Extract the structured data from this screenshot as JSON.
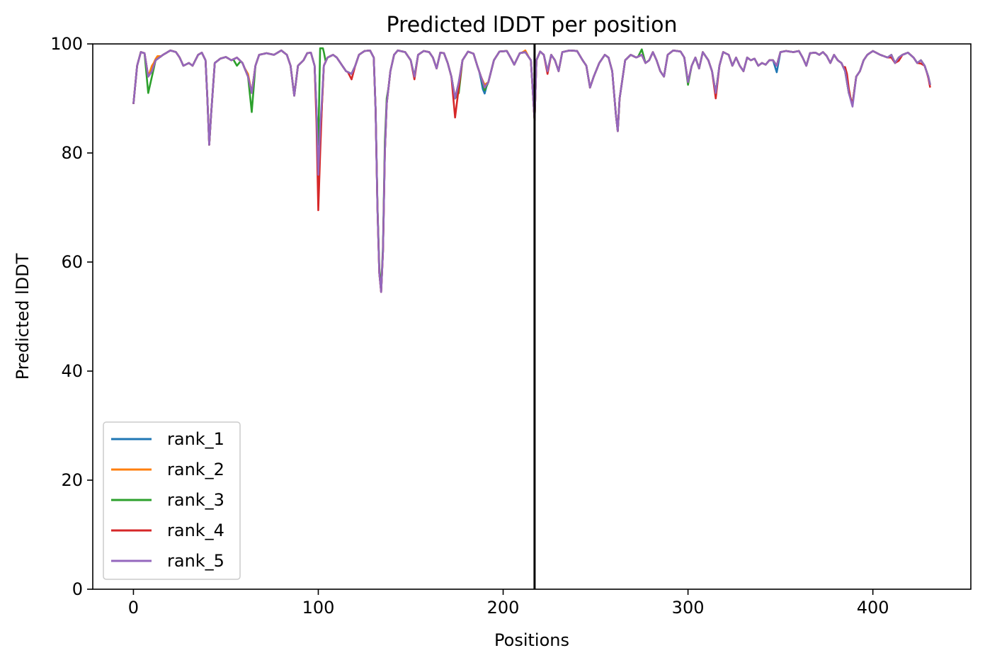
{
  "chart_data": {
    "type": "line",
    "title": "Predicted lDDT per position",
    "xlabel": "Positions",
    "ylabel": "Predicted lDDT",
    "xlim": [
      -22,
      453
    ],
    "ylim": [
      0,
      100
    ],
    "xticks": [
      0,
      100,
      200,
      300,
      400
    ],
    "yticks": [
      0,
      20,
      40,
      60,
      80,
      100
    ],
    "grid": false,
    "legend_position": "lower-left",
    "vertical_line": {
      "x": 217,
      "color": "#000000"
    },
    "base_profile": [
      [
        0,
        89
      ],
      [
        2,
        96
      ],
      [
        4,
        98.5
      ],
      [
        6,
        98.3
      ],
      [
        8,
        94
      ],
      [
        10,
        95
      ],
      [
        12,
        97
      ],
      [
        16,
        98
      ],
      [
        20,
        98.8
      ],
      [
        23,
        98.5
      ],
      [
        25,
        97.5
      ],
      [
        27,
        96
      ],
      [
        30,
        96.5
      ],
      [
        32,
        96
      ],
      [
        35,
        98
      ],
      [
        37,
        98.4
      ],
      [
        39,
        97
      ],
      [
        40,
        90
      ],
      [
        41,
        81.5
      ],
      [
        42,
        87
      ],
      [
        44,
        96.5
      ],
      [
        47,
        97.3
      ],
      [
        50,
        97.6
      ],
      [
        53,
        97
      ],
      [
        56,
        97.5
      ],
      [
        59,
        96.5
      ],
      [
        62,
        94
      ],
      [
        64,
        91
      ],
      [
        66,
        96
      ],
      [
        68,
        98
      ],
      [
        72,
        98.3
      ],
      [
        76,
        98
      ],
      [
        80,
        98.8
      ],
      [
        83,
        98
      ],
      [
        85,
        96
      ],
      [
        87,
        90.5
      ],
      [
        89,
        96
      ],
      [
        92,
        97
      ],
      [
        94,
        98.3
      ],
      [
        96,
        98.4
      ],
      [
        98,
        96
      ],
      [
        99,
        88
      ],
      [
        100,
        74
      ],
      [
        101,
        82
      ],
      [
        103,
        96
      ],
      [
        105,
        97.5
      ],
      [
        108,
        98
      ],
      [
        110,
        97.5
      ],
      [
        113,
        96
      ],
      [
        115,
        95
      ],
      [
        118,
        94.5
      ],
      [
        120,
        96
      ],
      [
        122,
        98
      ],
      [
        125,
        98.7
      ],
      [
        128,
        98.8
      ],
      [
        130,
        97.5
      ],
      [
        131,
        88
      ],
      [
        132,
        70
      ],
      [
        133,
        58
      ],
      [
        134,
        54.5
      ],
      [
        135,
        62
      ],
      [
        136,
        80
      ],
      [
        137,
        89
      ],
      [
        139,
        95
      ],
      [
        141,
        98
      ],
      [
        143,
        98.8
      ],
      [
        147,
        98.5
      ],
      [
        150,
        97
      ],
      [
        152,
        94
      ],
      [
        154,
        98
      ],
      [
        157,
        98.7
      ],
      [
        160,
        98.5
      ],
      [
        162,
        97.5
      ],
      [
        164,
        95.5
      ],
      [
        166,
        98.4
      ],
      [
        168,
        98.3
      ],
      [
        170,
        96.5
      ],
      [
        172,
        94
      ],
      [
        174,
        90
      ],
      [
        176,
        93
      ],
      [
        178,
        97
      ],
      [
        181,
        98.6
      ],
      [
        184,
        98.2
      ],
      [
        186,
        96
      ],
      [
        188,
        94
      ],
      [
        190,
        92
      ],
      [
        192,
        93
      ],
      [
        195,
        97
      ],
      [
        198,
        98.6
      ],
      [
        202,
        98.7
      ],
      [
        204,
        97.5
      ],
      [
        206,
        96.2
      ],
      [
        209,
        98.3
      ],
      [
        212,
        98.5
      ],
      [
        215,
        97
      ],
      [
        217,
        86
      ],
      [
        218,
        97
      ],
      [
        220,
        98.6
      ],
      [
        222,
        98
      ],
      [
        224,
        95
      ],
      [
        226,
        98
      ],
      [
        228,
        97
      ],
      [
        230,
        95
      ],
      [
        232,
        98.5
      ],
      [
        236,
        98.8
      ],
      [
        240,
        98.7
      ],
      [
        243,
        97
      ],
      [
        245,
        96
      ],
      [
        247,
        92
      ],
      [
        249,
        94
      ],
      [
        252,
        96.5
      ],
      [
        255,
        98
      ],
      [
        257,
        97.5
      ],
      [
        259,
        95
      ],
      [
        261,
        87
      ],
      [
        262,
        84
      ],
      [
        263,
        90
      ],
      [
        266,
        97
      ],
      [
        269,
        98
      ],
      [
        272,
        97.5
      ],
      [
        275,
        98
      ],
      [
        277,
        96.5
      ],
      [
        279,
        97
      ],
      [
        281,
        98.5
      ],
      [
        283,
        97
      ],
      [
        285,
        95
      ],
      [
        287,
        94
      ],
      [
        289,
        98
      ],
      [
        292,
        98.8
      ],
      [
        296,
        98.6
      ],
      [
        298,
        97.5
      ],
      [
        300,
        93
      ],
      [
        302,
        96
      ],
      [
        304,
        97.5
      ],
      [
        306,
        95.5
      ],
      [
        308,
        98.5
      ],
      [
        311,
        97
      ],
      [
        313,
        95
      ],
      [
        315,
        91
      ],
      [
        317,
        96
      ],
      [
        319,
        98.5
      ],
      [
        322,
        98
      ],
      [
        324,
        96
      ],
      [
        326,
        97.5
      ],
      [
        328,
        96
      ],
      [
        330,
        95
      ],
      [
        332,
        97.5
      ],
      [
        334,
        97
      ],
      [
        336,
        97.3
      ],
      [
        338,
        96
      ],
      [
        340,
        96.5
      ],
      [
        342,
        96.2
      ],
      [
        344,
        97
      ],
      [
        346,
        97
      ],
      [
        348,
        96
      ],
      [
        350,
        98.5
      ],
      [
        353,
        98.7
      ],
      [
        357,
        98.5
      ],
      [
        360,
        98.7
      ],
      [
        362,
        97.5
      ],
      [
        364,
        96
      ],
      [
        366,
        98.3
      ],
      [
        369,
        98.4
      ],
      [
        371,
        98
      ],
      [
        373,
        98.5
      ],
      [
        375,
        97.8
      ],
      [
        377,
        96.5
      ],
      [
        379,
        98
      ],
      [
        381,
        97
      ],
      [
        383,
        96.5
      ],
      [
        385,
        95
      ],
      [
        387,
        91
      ],
      [
        389,
        89
      ],
      [
        391,
        94
      ],
      [
        393,
        95
      ],
      [
        395,
        97
      ],
      [
        397,
        98
      ],
      [
        400,
        98.7
      ],
      [
        404,
        98
      ],
      [
        408,
        97.5
      ],
      [
        410,
        98
      ],
      [
        412,
        96.5
      ],
      [
        414,
        97.5
      ],
      [
        416,
        98
      ],
      [
        419,
        98.4
      ],
      [
        422,
        97.5
      ],
      [
        424,
        96.5
      ],
      [
        426,
        97
      ],
      [
        428,
        96
      ],
      [
        430,
        94
      ],
      [
        431,
        92.5
      ]
    ],
    "series": [
      {
        "name": "rank_1",
        "color": "#1f77b4",
        "deltas": [
          [
            189,
            -1
          ],
          [
            190,
            -0.6
          ],
          [
            348,
            -1.2
          ],
          [
            315,
            -0.5
          ]
        ]
      },
      {
        "name": "rank_2",
        "color": "#ff7f0e",
        "deltas": [
          [
            10,
            1
          ],
          [
            13,
            0.5
          ],
          [
            62,
            0.5
          ],
          [
            190,
            0.5
          ],
          [
            212,
            0.3
          ]
        ]
      },
      {
        "name": "rank_3",
        "color": "#2ca02c",
        "deltas": [
          [
            8,
            -3
          ],
          [
            10,
            -1
          ],
          [
            56,
            -1.5
          ],
          [
            64,
            -3.5
          ],
          [
            101,
            15
          ],
          [
            102,
            5
          ],
          [
            133,
            1
          ],
          [
            136,
            2
          ],
          [
            176,
            -2
          ],
          [
            190,
            -0.5
          ],
          [
            275,
            1
          ],
          [
            300,
            -0.5
          ]
        ]
      },
      {
        "name": "rank_4",
        "color": "#d62728",
        "deltas": [
          [
            100,
            -4.5
          ],
          [
            118,
            -1
          ],
          [
            152,
            -0.5
          ],
          [
            174,
            -3.5
          ],
          [
            176,
            -1
          ],
          [
            224,
            -0.5
          ],
          [
            315,
            -1
          ],
          [
            386,
            1.5
          ],
          [
            410,
            -0.5
          ],
          [
            414,
            -0.6
          ],
          [
            426,
            -0.6
          ],
          [
            431,
            -0.5
          ]
        ]
      },
      {
        "name": "rank_5",
        "color": "#9467bd",
        "deltas": [
          [
            100,
            1
          ],
          [
            101,
            2
          ],
          [
            262,
            0
          ],
          [
            389,
            -0.5
          ]
        ]
      }
    ]
  }
}
